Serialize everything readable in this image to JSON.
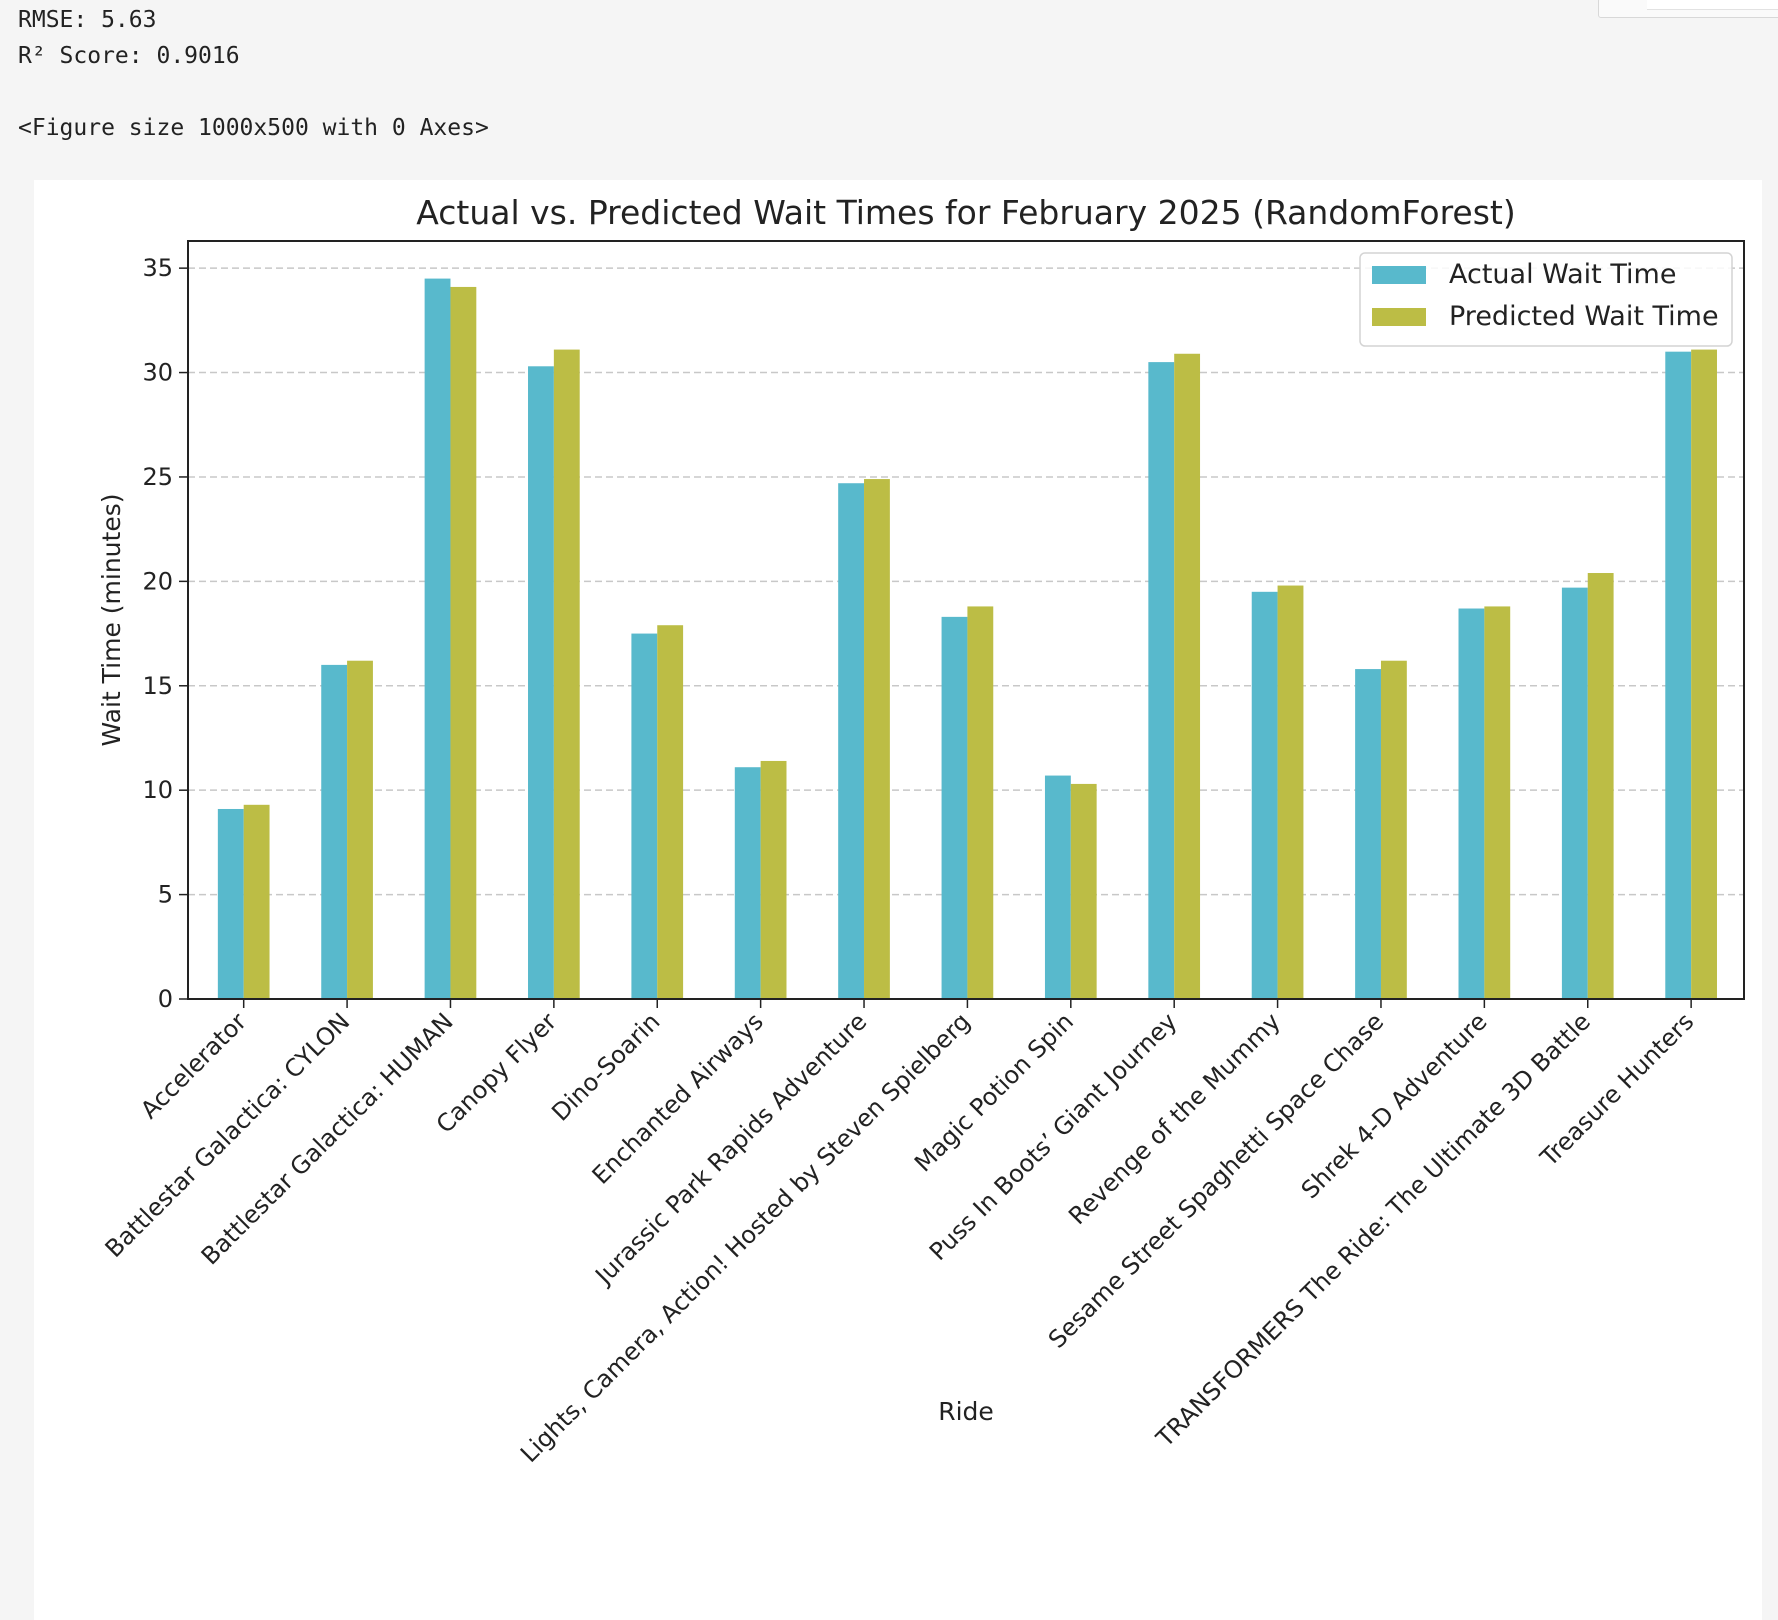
{
  "output": {
    "lines": [
      "RMSE: 5.63",
      "R² Score: 0.9016",
      "",
      "<Figure size 1000x500 with 0 Axes>"
    ]
  },
  "chart_data": {
    "type": "bar",
    "title": "Actual vs. Predicted Wait Times for February 2025 (RandomForest)",
    "xlabel": "Ride",
    "ylabel": "Wait Time (minutes)",
    "ylim": [
      0,
      36.3
    ],
    "yticks": [
      0,
      5,
      10,
      15,
      20,
      25,
      30,
      35
    ],
    "grid": "y dashed",
    "legend_position": "top-right",
    "categories": [
      "Accelerator",
      "Battlestar Galactica: CYLON",
      "Battlestar Galactica: HUMAN",
      "Canopy Flyer",
      "Dino-Soarin",
      "Enchanted Airways",
      "Jurassic Park Rapids Adventure",
      "Lights, Camera, Action! Hosted by Steven Spielberg",
      "Magic Potion Spin",
      "Puss In Boots’ Giant Journey",
      "Revenge of the Mummy",
      "Sesame Street Spaghetti Space Chase",
      "Shrek 4-D Adventure",
      "TRANSFORMERS The Ride: The Ultimate 3D Battle",
      "Treasure Hunters"
    ],
    "series": [
      {
        "name": "Actual Wait Time",
        "color": "#58b9cc",
        "values": [
          9.1,
          16.0,
          34.5,
          30.3,
          17.5,
          11.1,
          24.7,
          18.3,
          10.7,
          30.5,
          19.5,
          15.8,
          18.7,
          19.7,
          31.0
        ]
      },
      {
        "name": "Predicted Wait Time",
        "color": "#bcbd45",
        "values": [
          9.3,
          16.2,
          34.1,
          31.1,
          17.9,
          11.4,
          24.9,
          18.8,
          10.3,
          30.9,
          19.8,
          16.2,
          18.8,
          20.4,
          31.1
        ]
      }
    ]
  }
}
